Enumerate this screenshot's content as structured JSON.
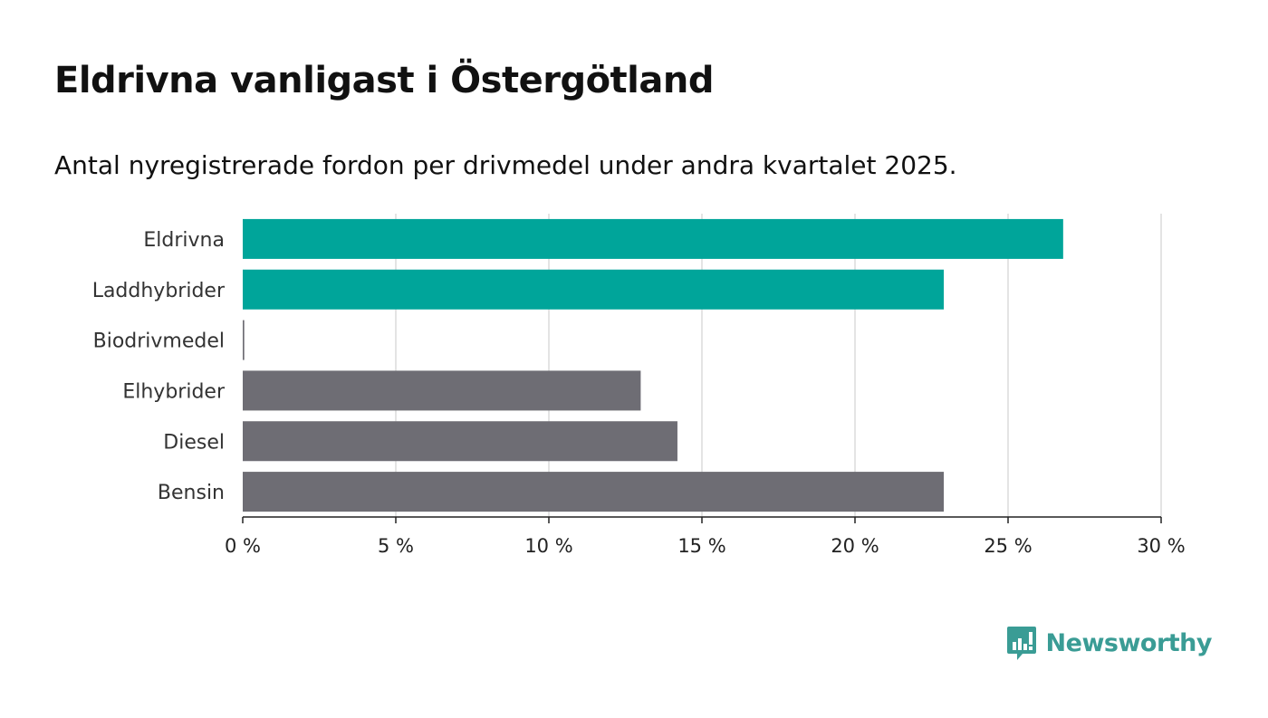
{
  "header": {
    "title": "Eldrivna vanligast i Östergötland",
    "subtitle": "Antal nyregistrerade fordon per drivmedel under andra kvartalet 2025."
  },
  "brand": {
    "name": "Newsworthy",
    "icon": "bar-chart-speech-bubble-icon",
    "color": "#3a9c95"
  },
  "chart_data": {
    "type": "bar",
    "orientation": "horizontal",
    "title": "",
    "xlabel": "",
    "ylabel": "",
    "categories": [
      "Eldrivna",
      "Laddhybrider",
      "Biodrivmedel",
      "Elhybrider",
      "Diesel",
      "Bensin"
    ],
    "values": [
      26.8,
      22.9,
      0.05,
      13.0,
      14.2,
      22.9
    ],
    "colors": [
      "#00a59a",
      "#00a59a",
      "#6e6d74",
      "#6e6d74",
      "#6e6d74",
      "#6e6d74"
    ],
    "xlim": [
      0,
      30
    ],
    "ticks": [
      0,
      5,
      10,
      15,
      20,
      25,
      30
    ],
    "tick_labels": [
      "0 %",
      "5 %",
      "10 %",
      "15 %",
      "20 %",
      "25 %",
      "30 %"
    ],
    "grid": true,
    "legend": "none"
  }
}
